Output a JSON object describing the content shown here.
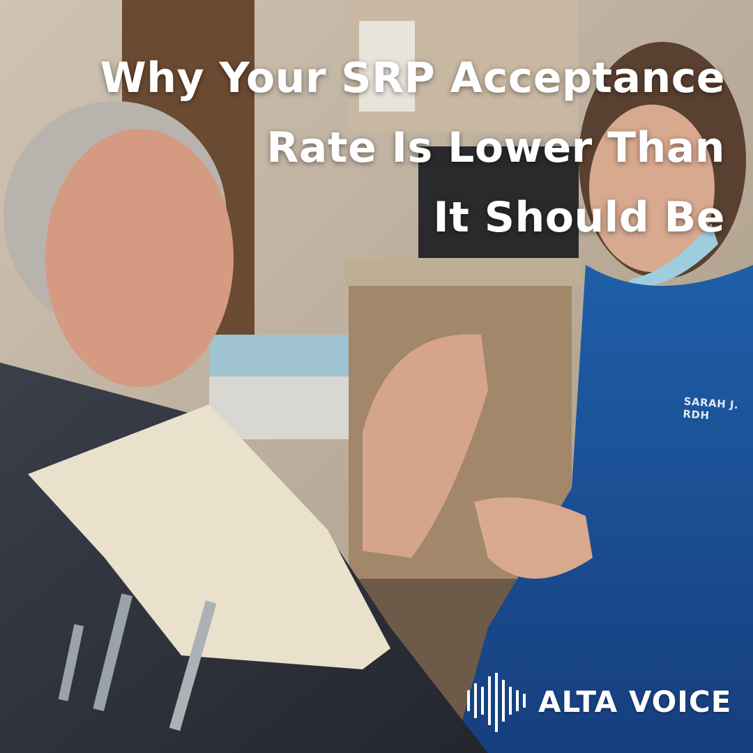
{
  "headline": {
    "lines": [
      "Why Your SRP Acceptance",
      "Rate Is Lower Than",
      "It Should Be"
    ]
  },
  "badge": {
    "text": "SARAH J. RDH"
  },
  "logo": {
    "text": "ALTA VOICE"
  }
}
